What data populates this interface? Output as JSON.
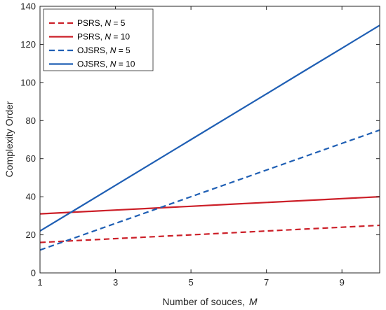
{
  "chart_data": {
    "type": "line",
    "xlabel": "Number of souces,",
    "xlabel_var": "M",
    "ylabel": "Complexity Order",
    "xlim": [
      1,
      10
    ],
    "ylim": [
      0,
      140
    ],
    "xticks": [
      1,
      3,
      5,
      7,
      9
    ],
    "yticks": [
      0,
      20,
      40,
      60,
      80,
      100,
      120,
      140
    ],
    "grid": false,
    "legend_position": "top-left",
    "x": [
      1,
      2,
      3,
      4,
      5,
      6,
      7,
      8,
      9,
      10
    ],
    "series": [
      {
        "name": "PSRS,",
        "param": "N",
        "param_value": "= 5",
        "color": "#cc1f28",
        "style": "dashed",
        "values": [
          16,
          17,
          18,
          19,
          20,
          21,
          22,
          23,
          24,
          25
        ]
      },
      {
        "name": "PSRS,",
        "param": "N",
        "param_value": "= 10",
        "color": "#cc1f28",
        "style": "solid",
        "values": [
          31,
          32,
          33,
          34,
          35,
          36,
          37,
          38,
          39,
          40
        ]
      },
      {
        "name": "OJSRS,",
        "param": "N",
        "param_value": "= 5",
        "color": "#1f5fb4",
        "style": "dashed",
        "values": [
          12,
          19,
          26,
          33,
          40,
          47,
          54,
          61,
          68,
          75
        ]
      },
      {
        "name": "OJSRS,",
        "param": "N",
        "param_value": "= 10",
        "color": "#1f5fb4",
        "style": "solid",
        "values": [
          22,
          34,
          46,
          58,
          70,
          82,
          94,
          106,
          118,
          130
        ]
      }
    ]
  }
}
